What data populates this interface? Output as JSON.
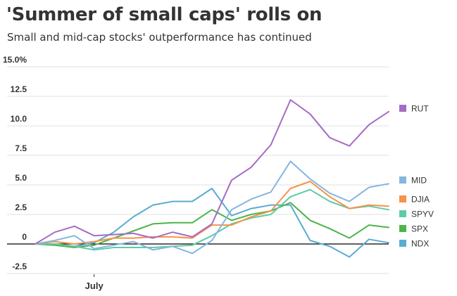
{
  "chart_data": {
    "type": "line",
    "title": "'Summer of small caps' rolls on",
    "subtitle": "Small and mid-cap stocks' outperformance has continued",
    "xlabel": "",
    "ylabel": "",
    "ylim": [
      -2.5,
      15.0
    ],
    "yticks": [
      {
        "value": 15.0,
        "label": "15.0%"
      },
      {
        "value": 12.5,
        "label": "12.5"
      },
      {
        "value": 10.0,
        "label": "10.0"
      },
      {
        "value": 7.5,
        "label": "7.5"
      },
      {
        "value": 5.0,
        "label": "5.0"
      },
      {
        "value": 2.5,
        "label": "2.5"
      },
      {
        "value": 0,
        "label": "0"
      },
      {
        "value": -2.5,
        "label": "-2.5"
      }
    ],
    "xticks": [
      {
        "index": 3,
        "label": "July"
      }
    ],
    "num_points": 19,
    "grid": true,
    "legend_position": "right",
    "series": [
      {
        "name": "RUT",
        "color": "#a66bc4",
        "values": [
          0,
          1.0,
          1.5,
          0.7,
          0.8,
          0.9,
          0.5,
          1.0,
          0.6,
          1.7,
          5.4,
          6.5,
          8.4,
          12.2,
          11.0,
          9.0,
          8.3,
          10.1,
          11.2
        ]
      },
      {
        "name": "MID",
        "color": "#85b5e0",
        "values": [
          0,
          0.3,
          0.7,
          -0.4,
          -0.1,
          0.2,
          -0.5,
          -0.2,
          -0.8,
          0.3,
          2.9,
          3.8,
          4.4,
          7.0,
          5.5,
          4.3,
          3.6,
          4.8,
          5.1
        ]
      },
      {
        "name": "DJIA",
        "color": "#f7924b",
        "values": [
          0,
          0.2,
          0,
          0.2,
          0.5,
          0.5,
          0.6,
          0.6,
          0.5,
          1.6,
          1.6,
          2.3,
          2.8,
          4.7,
          5.3,
          4.0,
          3.0,
          3.3,
          3.2
        ]
      },
      {
        "name": "SPYV",
        "color": "#5ecba8",
        "values": [
          0,
          0,
          -0.2,
          -0.5,
          -0.3,
          -0.3,
          -0.3,
          -0.2,
          -0.1,
          0.7,
          1.7,
          2.2,
          2.5,
          4.0,
          4.6,
          3.6,
          3.0,
          3.2,
          2.9
        ]
      },
      {
        "name": "SPX",
        "color": "#4cb44c",
        "values": [
          0,
          -0.1,
          -0.3,
          -0.1,
          0.5,
          1.1,
          1.7,
          1.8,
          1.8,
          2.9,
          2.0,
          2.5,
          2.8,
          3.5,
          2.0,
          1.3,
          0.5,
          1.6,
          1.4
        ]
      },
      {
        "name": "NDX",
        "color": "#5aacd0",
        "values": [
          0,
          0,
          -0.2,
          0.1,
          1.0,
          2.3,
          3.3,
          3.6,
          3.6,
          4.7,
          2.4,
          3.0,
          3.3,
          3.3,
          0.3,
          -0.2,
          -1.1,
          0.4,
          0.1
        ]
      }
    ]
  }
}
